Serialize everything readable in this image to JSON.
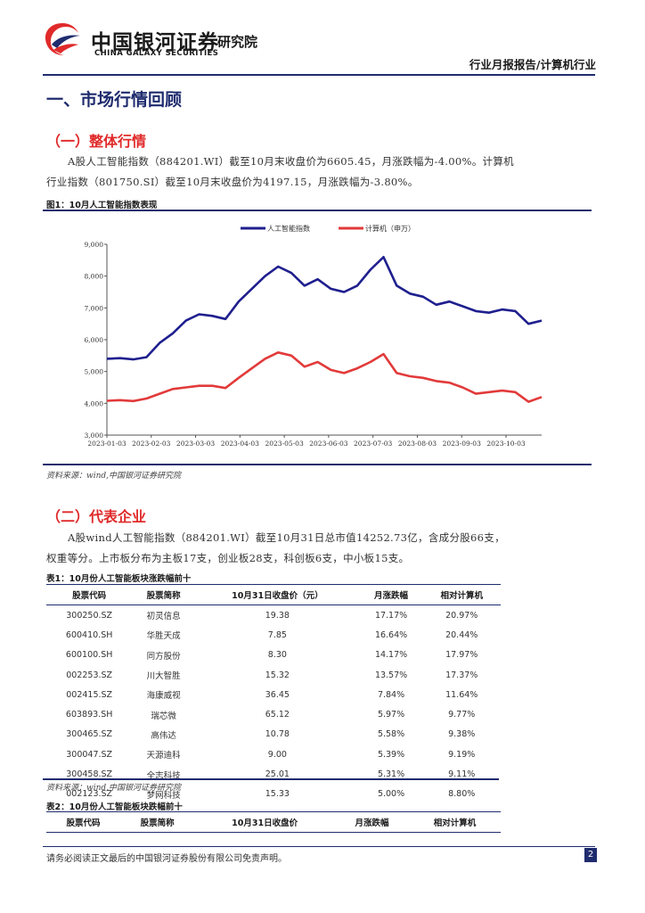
{
  "header": {
    "logo_cn": "中国银河证券",
    "logo_en": "CHINA GALAXY SECURITIES",
    "institute": "研究院",
    "report_type": "行业月报报告/计算机行业"
  },
  "section1": {
    "title": "一、市场行情回顾"
  },
  "section1a": {
    "title": "（一）整体行情",
    "para1": "A股人工智能指数（884201.WI）截至10月末收盘价为6605.45，月涨跌幅为-4.00%。计算机",
    "para2": "行业指数（801750.SI）截至10月末收盘价为4197.15，月涨跌幅为-3.80%。"
  },
  "figure1": {
    "caption": "图1：10月人工智能指数表现",
    "source": "资料来源：wind,中国银河证券研究院"
  },
  "chart_data": {
    "type": "line",
    "series": [
      {
        "name": "人工智能指数",
        "color": "#1f1f8f",
        "values": [
          5400,
          5420,
          5380,
          5450,
          5900,
          6200,
          6600,
          6800,
          6750,
          6650,
          7200,
          7600,
          8000,
          8300,
          8100,
          7700,
          7900,
          7600,
          7500,
          7700,
          8200,
          8600,
          7700,
          7450,
          7350,
          7100,
          7200,
          7050,
          6900,
          6850,
          6950,
          6900,
          6500,
          6600
        ]
      },
      {
        "name": "计算机（申万）",
        "color": "#e23a3a",
        "values": [
          4080,
          4100,
          4070,
          4150,
          4300,
          4450,
          4500,
          4550,
          4550,
          4480,
          4800,
          5100,
          5400,
          5600,
          5500,
          5150,
          5300,
          5050,
          4950,
          5100,
          5300,
          5550,
          4950,
          4850,
          4800,
          4700,
          4650,
          4500,
          4300,
          4350,
          4400,
          4350,
          4050,
          4197
        ]
      }
    ],
    "x_labels": [
      "2023-01-03",
      "2023-02-03",
      "2023-03-03",
      "2023-04-03",
      "2023-05-03",
      "2023-06-03",
      "2023-07-03",
      "2023-08-03",
      "2023-09-03",
      "2023-10-03"
    ],
    "y_labels": [
      "9,000",
      "8,000",
      "7,000",
      "6,000",
      "5,000",
      "4,000",
      "3,000"
    ],
    "ylim": [
      3000,
      9000
    ],
    "legend_position": "top"
  },
  "section1b": {
    "title": "（二）代表企业",
    "para1": "A股wind人工智能指数（884201.WI）截至10月31日总市值14252.73亿，含成分股66支，",
    "para2": "权重等分。上市板分布为主板17支，创业板28支，科创板6支，中小板15支。"
  },
  "table1": {
    "caption": "表1：10月份人工智能板块涨跌幅前十",
    "headers": [
      "股票代码",
      "股票简称",
      "10月31日收盘价（元）",
      "月涨跌幅",
      "相对计算机"
    ],
    "rows": [
      [
        "300250.SZ",
        "初灵信息",
        "19.38",
        "17.17%",
        "20.97%"
      ],
      [
        "600410.SH",
        "华胜天成",
        "7.85",
        "16.64%",
        "20.44%"
      ],
      [
        "600100.SH",
        "同方股份",
        "8.30",
        "14.17%",
        "17.97%"
      ],
      [
        "002253.SZ",
        "川大智胜",
        "15.32",
        "13.57%",
        "17.37%"
      ],
      [
        "002415.SZ",
        "海康威视",
        "36.45",
        "7.84%",
        "11.64%"
      ],
      [
        "603893.SH",
        "瑞芯微",
        "65.12",
        "5.97%",
        "9.77%"
      ],
      [
        "300465.SZ",
        "高伟达",
        "10.78",
        "5.58%",
        "9.38%"
      ],
      [
        "300047.SZ",
        "天源迪科",
        "9.00",
        "5.39%",
        "9.19%"
      ],
      [
        "300458.SZ",
        "全志科技",
        "25.01",
        "5.31%",
        "9.11%"
      ],
      [
        "002123.SZ",
        "梦网科技",
        "15.33",
        "5.00%",
        "8.80%"
      ]
    ],
    "source": "资料来源：wind,中国银河证券研究院"
  },
  "table2": {
    "caption": "表2：10月份人工智能板块跌幅前十",
    "headers": [
      "股票代码",
      "股票简称",
      "10月31日收盘价",
      "月涨跌幅",
      "相对计算机"
    ]
  },
  "footer": {
    "disclaimer": "请务必阅读正文最后的中国银河证券股份有限公司免责声明。",
    "page": "2"
  },
  "colors": {
    "brand_blue": "#1f2c6e",
    "brand_red": "#e02a2a"
  }
}
